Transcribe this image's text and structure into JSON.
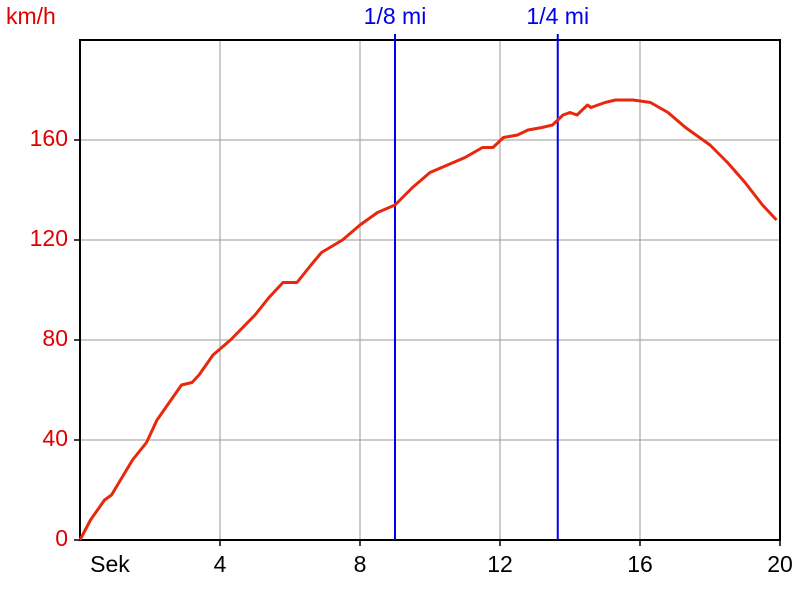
{
  "chart_data": {
    "type": "line",
    "y_label": "km/h",
    "x_label": "Sek",
    "x": [
      0,
      0.3,
      0.7,
      0.9,
      1.5,
      1.9,
      2.2,
      2.7,
      2.9,
      3.2,
      3.4,
      3.8,
      4.3,
      5.0,
      5.4,
      5.8,
      6.2,
      6.6,
      6.9,
      7.5,
      8.0,
      8.5,
      9.0,
      9.5,
      10.0,
      10.5,
      11.0,
      11.5,
      11.8,
      12.1,
      12.5,
      12.8,
      13.2,
      13.5,
      13.8,
      14.0,
      14.2,
      14.5,
      14.6,
      15.0,
      15.3,
      15.8,
      16.3,
      16.8,
      17.3,
      18.0,
      18.5,
      19.0,
      19.5,
      19.9
    ],
    "series": [
      {
        "color": "#e8280c",
        "values": [
          0,
          8,
          16,
          18,
          32,
          39,
          48,
          58,
          62,
          63,
          66,
          74,
          80,
          90,
          97,
          103,
          103,
          110,
          115,
          120,
          126,
          131,
          134,
          141,
          147,
          150,
          153,
          157,
          157,
          161,
          162,
          164,
          165,
          166,
          170,
          171,
          170,
          174,
          173,
          175,
          176,
          176,
          175,
          171,
          165,
          158,
          151,
          143,
          134,
          128
        ]
      }
    ],
    "markers": [
      {
        "label": "1/8 mi",
        "x": 9.0
      },
      {
        "label": "1/4 mi",
        "x": 13.65
      }
    ],
    "marker_color": "#0000ee",
    "xlim": [
      0,
      20
    ],
    "ylim": [
      0,
      200
    ],
    "xticks": [
      4,
      8,
      12,
      16,
      20
    ],
    "yticks": [
      0,
      40,
      80,
      120,
      160
    ],
    "grid": true
  }
}
